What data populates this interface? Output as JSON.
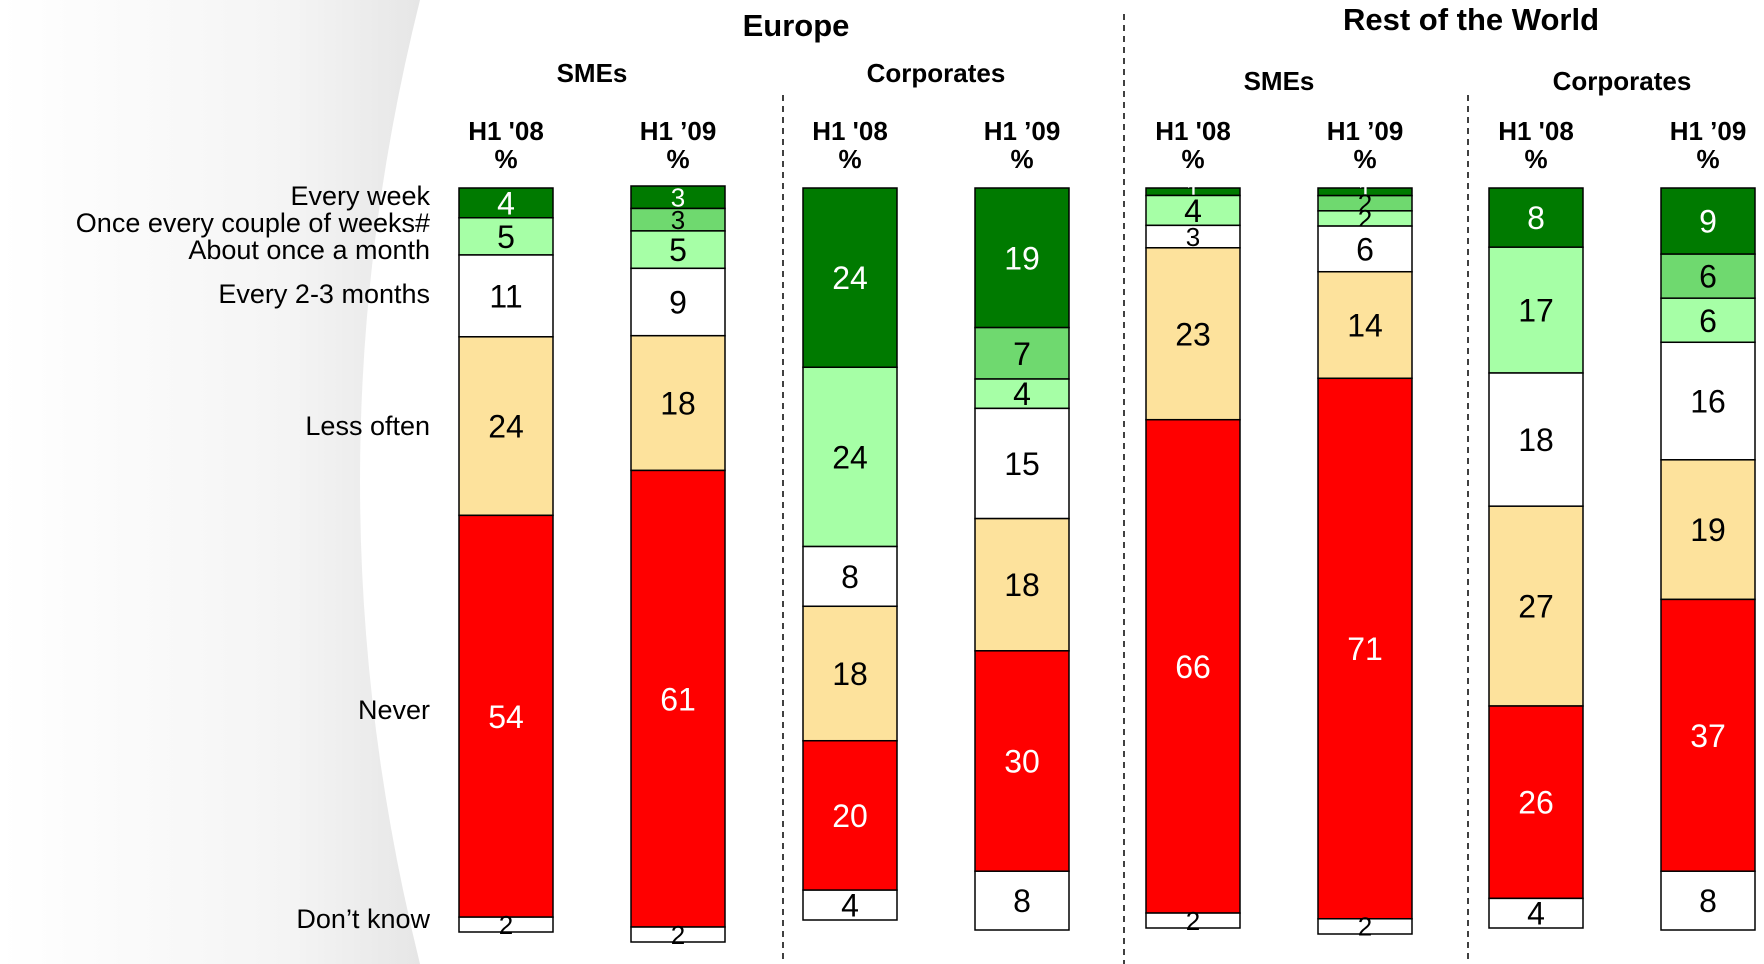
{
  "chart_data": {
    "type": "bar",
    "stacked": true,
    "normalized_percent": true,
    "title": "",
    "unit": "%",
    "categories": [
      "Every week",
      "Once every couple of weeks#",
      "About once a month",
      "Every 2-3 months",
      "Less often",
      "Never",
      "Don’t know"
    ],
    "colors": [
      "#007a00",
      "#6fd96f",
      "#a6ffa6",
      "#ffffff",
      "#fde29c",
      "#ff0000",
      "#ffffff"
    ],
    "regions": [
      {
        "title": "Europe",
        "segments": [
          {
            "title": "SMEs",
            "columns": [
              {
                "label": "H1 '08",
                "values": [
                  4,
                  0,
                  5,
                  11,
                  24,
                  54,
                  2
                ],
                "value_labels": [
                  "4",
                  "",
                  "5",
                  "11",
                  "24",
                  "54",
                  "2"
                ]
              },
              {
                "label": "H1 ’09",
                "values": [
                  3,
                  3,
                  5,
                  9,
                  18,
                  61,
                  2
                ],
                "value_labels": [
                  "3",
                  "3",
                  "5",
                  "9",
                  "18",
                  "61",
                  "2"
                ]
              }
            ]
          },
          {
            "title": "Corporates",
            "columns": [
              {
                "label": "H1 '08",
                "values": [
                  24,
                  0,
                  24,
                  8,
                  18,
                  20,
                  4
                ],
                "value_labels": [
                  "24",
                  "-",
                  "24",
                  "8",
                  "18",
                  "20",
                  "4"
                ]
              },
              {
                "label": "H1 ’09",
                "values": [
                  19,
                  7,
                  4,
                  15,
                  18,
                  30,
                  8
                ],
                "value_labels": [
                  "19",
                  "7",
                  "4",
                  "15",
                  "18",
                  "30",
                  "8"
                ]
              }
            ]
          }
        ]
      },
      {
        "title": "Rest of the World",
        "segments": [
          {
            "title": "SMEs",
            "columns": [
              {
                "label": "H1 '08",
                "values": [
                  1,
                  0,
                  4,
                  3,
                  23,
                  66,
                  2
                ],
                "value_labels": [
                  "1",
                  "",
                  "4",
                  "3",
                  "23",
                  "66",
                  "2"
                ]
              },
              {
                "label": "H1 ’09",
                "values": [
                  1,
                  2,
                  2,
                  6,
                  14,
                  71,
                  2
                ],
                "value_labels": [
                  "1",
                  "2",
                  "2",
                  "6",
                  "14",
                  "71",
                  "2"
                ]
              }
            ]
          },
          {
            "title": "Corporates",
            "columns": [
              {
                "label": "H1 '08",
                "values": [
                  8,
                  0,
                  17,
                  18,
                  27,
                  26,
                  4
                ],
                "value_labels": [
                  "8",
                  "-",
                  "17",
                  "18",
                  "27",
                  "26",
                  "4"
                ]
              },
              {
                "label": "H1 ’09",
                "values": [
                  9,
                  6,
                  6,
                  16,
                  19,
                  37,
                  8
                ],
                "value_labels": [
                  "9",
                  "6",
                  "6",
                  "16",
                  "19",
                  "37",
                  "8"
                ]
              }
            ]
          }
        ]
      }
    ],
    "grid": false,
    "legend": "left-row-labels",
    "ylim": [
      0,
      100
    ]
  }
}
